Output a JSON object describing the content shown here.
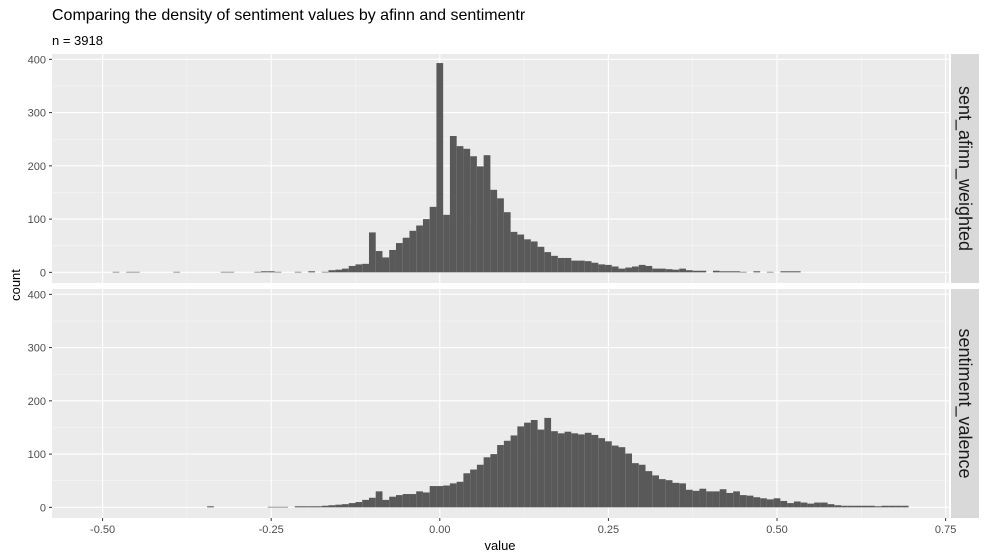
{
  "chart_data": {
    "type": "bar",
    "title": "Comparing the density of sentiment values by afinn and sentimentr",
    "subtitle": "n = 3918",
    "xlabel": "value",
    "ylabel": "count",
    "xlim": [
      -0.575,
      0.755
    ],
    "ylim": [
      -20,
      410
    ],
    "x_ticks": [
      -0.5,
      -0.25,
      0.0,
      0.25,
      0.5,
      0.75
    ],
    "x_tick_labels": [
      "-0.50",
      "-0.25",
      "0.00",
      "0.25",
      "0.50",
      "0.75"
    ],
    "y_ticks": [
      0,
      100,
      200,
      300,
      400
    ],
    "y_tick_labels": [
      "0",
      "100",
      "200",
      "300",
      "400"
    ],
    "bin_width": 0.01,
    "panels": [
      {
        "strip_label": "sent_afinn_weighted",
        "bins": [
          [
            -0.48,
            1
          ],
          [
            -0.46,
            1
          ],
          [
            -0.45,
            1
          ],
          [
            -0.39,
            1
          ],
          [
            -0.32,
            1
          ],
          [
            -0.31,
            1
          ],
          [
            -0.27,
            1
          ],
          [
            -0.26,
            2
          ],
          [
            -0.25,
            2
          ],
          [
            -0.24,
            1
          ],
          [
            -0.21,
            1
          ],
          [
            -0.19,
            2
          ],
          [
            -0.17,
            1
          ],
          [
            -0.16,
            4
          ],
          [
            -0.15,
            5
          ],
          [
            -0.14,
            7
          ],
          [
            -0.13,
            12
          ],
          [
            -0.12,
            15
          ],
          [
            -0.11,
            16
          ],
          [
            -0.1,
            75
          ],
          [
            -0.09,
            40
          ],
          [
            -0.08,
            28
          ],
          [
            -0.07,
            42
          ],
          [
            -0.06,
            55
          ],
          [
            -0.05,
            65
          ],
          [
            -0.04,
            78
          ],
          [
            -0.03,
            88
          ],
          [
            -0.02,
            100
          ],
          [
            -0.01,
            123
          ],
          [
            0.0,
            393
          ],
          [
            0.01,
            108
          ],
          [
            0.02,
            256
          ],
          [
            0.03,
            237
          ],
          [
            0.04,
            232
          ],
          [
            0.05,
            218
          ],
          [
            0.06,
            199
          ],
          [
            0.07,
            220
          ],
          [
            0.08,
            155
          ],
          [
            0.09,
            139
          ],
          [
            0.1,
            113
          ],
          [
            0.11,
            76
          ],
          [
            0.12,
            71
          ],
          [
            0.13,
            62
          ],
          [
            0.14,
            58
          ],
          [
            0.15,
            48
          ],
          [
            0.16,
            38
          ],
          [
            0.17,
            31
          ],
          [
            0.18,
            27
          ],
          [
            0.19,
            27
          ],
          [
            0.2,
            22
          ],
          [
            0.21,
            22
          ],
          [
            0.22,
            21
          ],
          [
            0.23,
            18
          ],
          [
            0.24,
            15
          ],
          [
            0.25,
            14
          ],
          [
            0.26,
            11
          ],
          [
            0.27,
            7
          ],
          [
            0.28,
            9
          ],
          [
            0.29,
            11
          ],
          [
            0.3,
            14
          ],
          [
            0.31,
            12
          ],
          [
            0.32,
            7
          ],
          [
            0.33,
            7
          ],
          [
            0.34,
            6
          ],
          [
            0.35,
            5
          ],
          [
            0.36,
            7
          ],
          [
            0.37,
            4
          ],
          [
            0.38,
            3
          ],
          [
            0.39,
            3
          ],
          [
            0.41,
            3
          ],
          [
            0.42,
            2
          ],
          [
            0.43,
            2
          ],
          [
            0.44,
            2
          ],
          [
            0.45,
            1
          ],
          [
            0.47,
            2
          ],
          [
            0.49,
            1
          ],
          [
            0.51,
            2
          ],
          [
            0.52,
            2
          ],
          [
            0.53,
            2
          ]
        ]
      },
      {
        "strip_label": "sentiment_valence",
        "bins": [
          [
            -0.34,
            2
          ],
          [
            -0.25,
            1
          ],
          [
            -0.24,
            1
          ],
          [
            -0.23,
            1
          ],
          [
            -0.21,
            2
          ],
          [
            -0.2,
            2
          ],
          [
            -0.19,
            2
          ],
          [
            -0.18,
            2
          ],
          [
            -0.17,
            3
          ],
          [
            -0.16,
            4
          ],
          [
            -0.15,
            5
          ],
          [
            -0.14,
            6
          ],
          [
            -0.13,
            8
          ],
          [
            -0.12,
            10
          ],
          [
            -0.11,
            14
          ],
          [
            -0.1,
            18
          ],
          [
            -0.09,
            30
          ],
          [
            -0.08,
            14
          ],
          [
            -0.07,
            20
          ],
          [
            -0.06,
            23
          ],
          [
            -0.05,
            25
          ],
          [
            -0.04,
            25
          ],
          [
            -0.03,
            30
          ],
          [
            -0.02,
            28
          ],
          [
            -0.01,
            40
          ],
          [
            0.0,
            40
          ],
          [
            0.01,
            41
          ],
          [
            0.02,
            45
          ],
          [
            0.03,
            48
          ],
          [
            0.04,
            64
          ],
          [
            0.05,
            71
          ],
          [
            0.06,
            80
          ],
          [
            0.07,
            94
          ],
          [
            0.08,
            100
          ],
          [
            0.09,
            117
          ],
          [
            0.1,
            125
          ],
          [
            0.11,
            135
          ],
          [
            0.12,
            152
          ],
          [
            0.13,
            159
          ],
          [
            0.14,
            164
          ],
          [
            0.15,
            146
          ],
          [
            0.16,
            168
          ],
          [
            0.17,
            143
          ],
          [
            0.18,
            139
          ],
          [
            0.19,
            142
          ],
          [
            0.2,
            139
          ],
          [
            0.21,
            137
          ],
          [
            0.22,
            140
          ],
          [
            0.23,
            136
          ],
          [
            0.24,
            130
          ],
          [
            0.25,
            124
          ],
          [
            0.26,
            116
          ],
          [
            0.27,
            113
          ],
          [
            0.28,
            101
          ],
          [
            0.29,
            83
          ],
          [
            0.3,
            80
          ],
          [
            0.31,
            68
          ],
          [
            0.32,
            60
          ],
          [
            0.33,
            53
          ],
          [
            0.34,
            51
          ],
          [
            0.35,
            46
          ],
          [
            0.36,
            45
          ],
          [
            0.37,
            33
          ],
          [
            0.38,
            31
          ],
          [
            0.39,
            35
          ],
          [
            0.4,
            30
          ],
          [
            0.41,
            30
          ],
          [
            0.42,
            34
          ],
          [
            0.43,
            27
          ],
          [
            0.44,
            30
          ],
          [
            0.45,
            23
          ],
          [
            0.46,
            22
          ],
          [
            0.47,
            19
          ],
          [
            0.48,
            17
          ],
          [
            0.49,
            15
          ],
          [
            0.5,
            17
          ],
          [
            0.51,
            12
          ],
          [
            0.52,
            8
          ],
          [
            0.53,
            11
          ],
          [
            0.54,
            9
          ],
          [
            0.55,
            7
          ],
          [
            0.56,
            9
          ],
          [
            0.57,
            9
          ],
          [
            0.58,
            6
          ],
          [
            0.59,
            4
          ],
          [
            0.6,
            3
          ],
          [
            0.61,
            3
          ],
          [
            0.62,
            3
          ],
          [
            0.63,
            3
          ],
          [
            0.64,
            3
          ],
          [
            0.65,
            2
          ],
          [
            0.66,
            3
          ],
          [
            0.67,
            3
          ],
          [
            0.68,
            3
          ],
          [
            0.69,
            3
          ]
        ]
      }
    ]
  }
}
